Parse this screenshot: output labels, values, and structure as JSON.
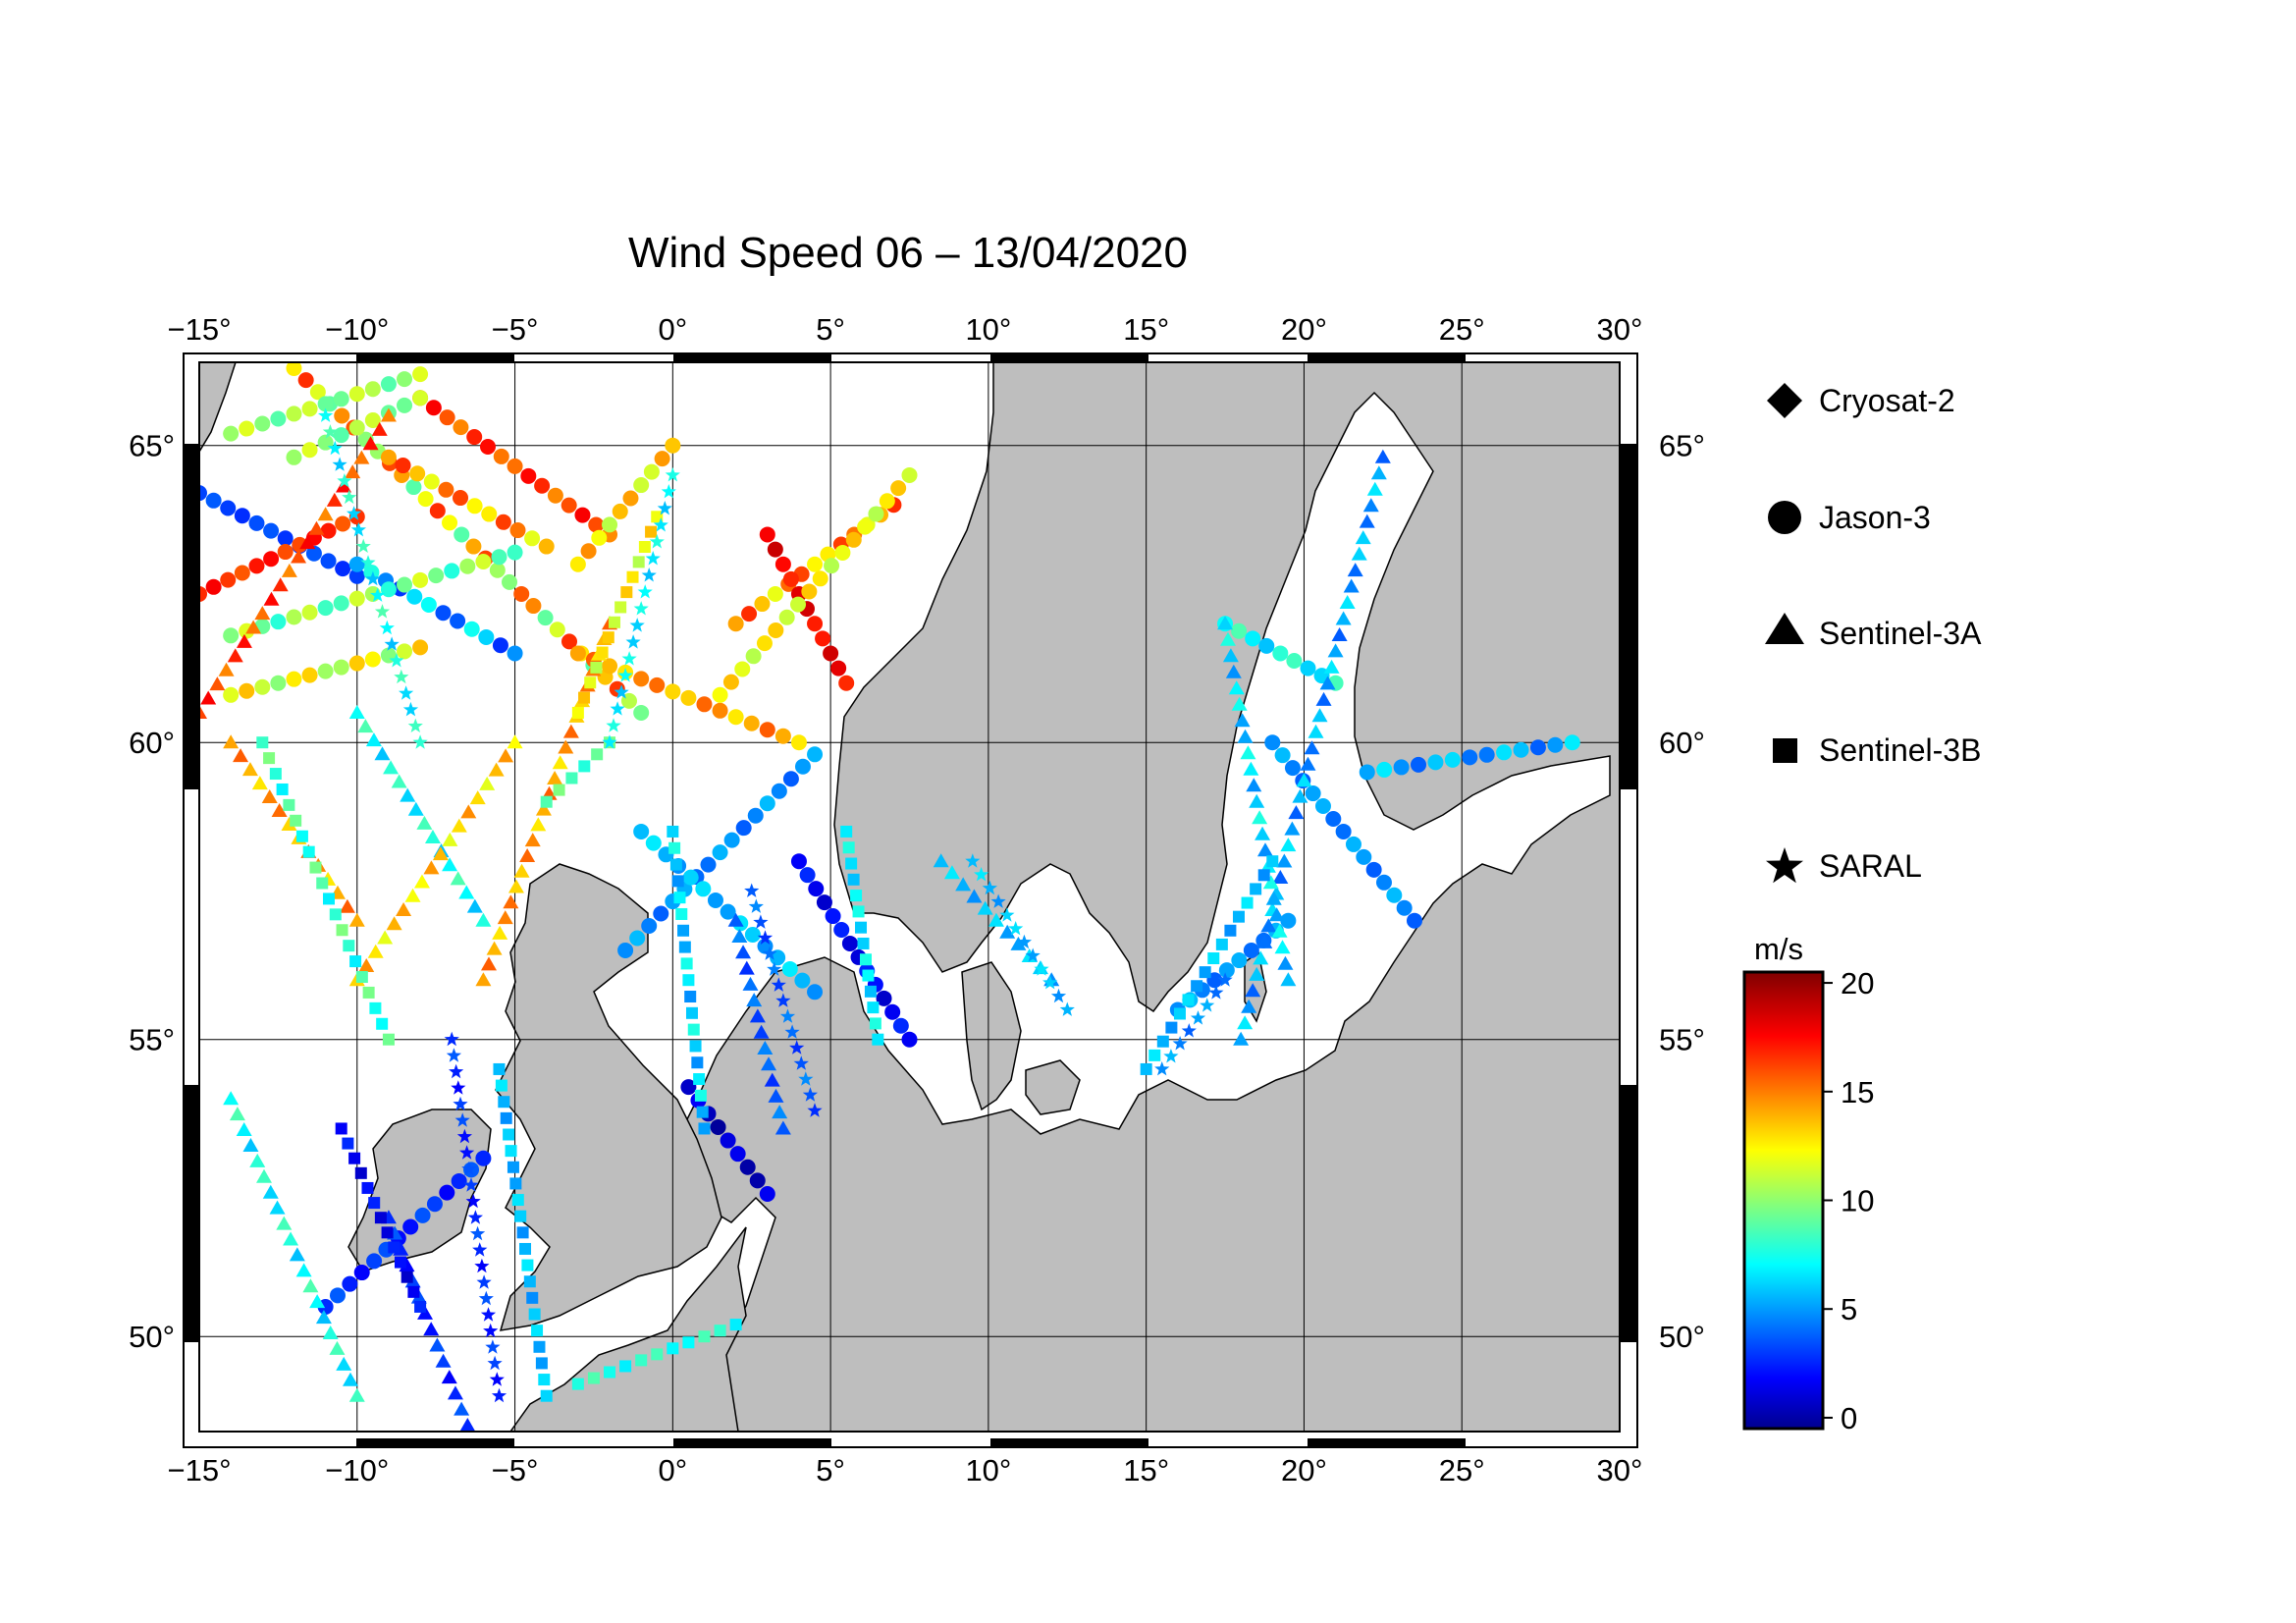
{
  "title": "Wind Speed 06 – 13/04/2020",
  "map": {
    "lon_range": [
      -15,
      30
    ],
    "lat_range": [
      48.4,
      66.4
    ],
    "lon_ticks": [
      -15,
      -10,
      -5,
      0,
      5,
      10,
      15,
      20,
      25,
      30
    ],
    "lon_tick_labels": [
      "−15°",
      "−10°",
      "−5°",
      "0°",
      "5°",
      "10°",
      "15°",
      "20°",
      "25°",
      "30°"
    ],
    "lat_ticks": [
      50,
      55,
      60,
      65
    ],
    "lat_tick_labels": [
      "50°",
      "55°",
      "60°",
      "65°"
    ],
    "land_color": "#bebebe",
    "sea_color": "#ffffff",
    "grid": true
  },
  "legend": {
    "items": [
      {
        "label": "Cryosat-2",
        "marker": "diamond"
      },
      {
        "label": "Jason-3",
        "marker": "circle"
      },
      {
        "label": "Sentinel-3A",
        "marker": "triangle"
      },
      {
        "label": "Sentinel-3B",
        "marker": "square"
      },
      {
        "label": "SARAL",
        "marker": "star"
      }
    ]
  },
  "colorbar": {
    "unit": "m/s",
    "min": -0.5,
    "max": 20.5,
    "ticks": [
      0,
      5,
      10,
      15,
      20
    ],
    "tick_labels": [
      "0",
      "5",
      "10",
      "15",
      "20"
    ],
    "colormap": "jet"
  },
  "chart_data": {
    "type": "scatter",
    "title": "Wind Speed 06 – 13/04/2020",
    "x_label": "",
    "y_label": "",
    "x_range": [
      -15,
      30
    ],
    "y_range": [
      48.4,
      66.4
    ],
    "color_scale": {
      "unit": "m/s",
      "range": [
        0,
        20
      ]
    },
    "tracks": [
      {
        "satellite": "Jason-3",
        "marker": "circle",
        "from": [
          -12.0,
          66.3
        ],
        "to": [
          -1.0,
          60.5
        ],
        "speed": [
          9,
          17
        ]
      },
      {
        "satellite": "Jason-3",
        "marker": "circle",
        "from": [
          -15.0,
          64.2
        ],
        "to": [
          -10.0,
          62.8
        ],
        "speed": [
          3,
          4
        ]
      },
      {
        "satellite": "Jason-3",
        "marker": "circle",
        "from": [
          -15.0,
          62.5
        ],
        "to": [
          -10.0,
          63.8
        ],
        "speed": [
          16,
          18
        ]
      },
      {
        "satellite": "Jason-3",
        "marker": "circle",
        "from": [
          -10.0,
          63.0
        ],
        "to": [
          -5.0,
          61.5
        ],
        "speed": [
          3,
          8
        ]
      },
      {
        "satellite": "Jason-3",
        "marker": "circle",
        "from": [
          2.0,
          62.0
        ],
        "to": [
          7.0,
          64.0
        ],
        "speed": [
          12,
          17
        ]
      },
      {
        "satellite": "Jason-3",
        "marker": "circle",
        "from": [
          3.0,
          63.5
        ],
        "to": [
          5.5,
          61.0
        ],
        "speed": [
          17,
          19
        ]
      },
      {
        "satellite": "Jason-3",
        "marker": "circle",
        "from": [
          -9.0,
          64.8
        ],
        "to": [
          -4.0,
          63.3
        ],
        "speed": [
          12,
          17
        ]
      },
      {
        "satellite": "Jason-3",
        "marker": "circle",
        "from": [
          -8.0,
          65.8
        ],
        "to": [
          -2.0,
          63.5
        ],
        "speed": [
          15,
          18
        ]
      },
      {
        "satellite": "Jason-3",
        "marker": "circle",
        "from": [
          -12.0,
          64.8
        ],
        "to": [
          -8.0,
          65.8
        ],
        "speed": [
          9,
          12
        ]
      },
      {
        "satellite": "Jason-3",
        "marker": "circle",
        "from": [
          -3.0,
          63.0
        ],
        "to": [
          0.0,
          65.0
        ],
        "speed": [
          11,
          15
        ]
      },
      {
        "satellite": "Jason-3",
        "marker": "circle",
        "from": [
          -14.0,
          61.8
        ],
        "to": [
          -5.0,
          63.2
        ],
        "speed": [
          8,
          12
        ]
      },
      {
        "satellite": "Jason-3",
        "marker": "circle",
        "from": [
          -14.0,
          60.8
        ],
        "to": [
          -8.0,
          61.6
        ],
        "speed": [
          10,
          14
        ]
      },
      {
        "satellite": "Jason-3",
        "marker": "circle",
        "from": [
          -3.0,
          61.5
        ],
        "to": [
          4.0,
          60.0
        ],
        "speed": [
          13,
          16
        ]
      },
      {
        "satellite": "Jason-3",
        "marker": "circle",
        "from": [
          1.5,
          60.8
        ],
        "to": [
          7.5,
          64.5
        ],
        "speed": [
          11,
          14
        ]
      },
      {
        "satellite": "Jason-3",
        "marker": "circle",
        "from": [
          -14.0,
          65.2
        ],
        "to": [
          -8.0,
          66.2
        ],
        "speed": [
          9,
          12
        ]
      },
      {
        "satellite": "Jason-3",
        "marker": "circle",
        "from": [
          -1.5,
          56.5
        ],
        "to": [
          4.5,
          59.8
        ],
        "speed": [
          4,
          6
        ]
      },
      {
        "satellite": "Jason-3",
        "marker": "circle",
        "from": [
          -1.0,
          58.5
        ],
        "to": [
          4.5,
          55.8
        ],
        "speed": [
          5,
          7
        ]
      },
      {
        "satellite": "Jason-3",
        "marker": "circle",
        "from": [
          4.0,
          58.0
        ],
        "to": [
          7.5,
          55.0
        ],
        "speed": [
          1,
          3
        ]
      },
      {
        "satellite": "Jason-3",
        "marker": "circle",
        "from": [
          0.5,
          54.2
        ],
        "to": [
          3.0,
          52.4
        ],
        "speed": [
          0,
          2
        ]
      },
      {
        "satellite": "Jason-3",
        "marker": "circle",
        "from": [
          -11.0,
          50.5
        ],
        "to": [
          -6.0,
          53.0
        ],
        "speed": [
          2,
          4
        ]
      },
      {
        "satellite": "Jason-3",
        "marker": "circle",
        "from": [
          16.0,
          55.5
        ],
        "to": [
          19.5,
          57.0
        ],
        "speed": [
          4,
          6
        ]
      },
      {
        "satellite": "Jason-3",
        "marker": "circle",
        "from": [
          17.5,
          62.0
        ],
        "to": [
          21.0,
          61.0
        ],
        "speed": [
          6,
          9
        ]
      },
      {
        "satellite": "Jason-3",
        "marker": "circle",
        "from": [
          19.0,
          60.0
        ],
        "to": [
          23.5,
          57.0
        ],
        "speed": [
          4,
          6
        ]
      },
      {
        "satellite": "Jason-3",
        "marker": "circle",
        "from": [
          22.0,
          59.5
        ],
        "to": [
          28.5,
          60.0
        ],
        "speed": [
          4,
          7
        ]
      },
      {
        "satellite": "Sentinel-3A",
        "marker": "triangle",
        "from": [
          -15.0,
          60.5
        ],
        "to": [
          -9.0,
          65.5
        ],
        "speed": [
          15,
          18
        ]
      },
      {
        "satellite": "Sentinel-3A",
        "marker": "triangle",
        "from": [
          -14.0,
          60.0
        ],
        "to": [
          -10.0,
          57.0
        ],
        "speed": [
          13,
          16
        ]
      },
      {
        "satellite": "Sentinel-3A",
        "marker": "triangle",
        "from": [
          -10.0,
          60.5
        ],
        "to": [
          -6.0,
          57.0
        ],
        "speed": [
          6,
          9
        ]
      },
      {
        "satellite": "Sentinel-3A",
        "marker": "triangle",
        "from": [
          -10.0,
          56.0
        ],
        "to": [
          -5.0,
          60.0
        ],
        "speed": [
          12,
          15
        ]
      },
      {
        "satellite": "Sentinel-3A",
        "marker": "triangle",
        "from": [
          -6.0,
          56.0
        ],
        "to": [
          -2.0,
          62.0
        ],
        "speed": [
          13,
          16
        ]
      },
      {
        "satellite": "Sentinel-3A",
        "marker": "triangle",
        "from": [
          -14.0,
          54.0
        ],
        "to": [
          -10.0,
          49.0
        ],
        "speed": [
          6,
          9
        ]
      },
      {
        "satellite": "Sentinel-3A",
        "marker": "triangle",
        "from": [
          -9.0,
          52.0
        ],
        "to": [
          -6.5,
          48.5
        ],
        "speed": [
          2,
          4
        ]
      },
      {
        "satellite": "Sentinel-3A",
        "marker": "triangle",
        "from": [
          2.0,
          57.0
        ],
        "to": [
          3.5,
          53.5
        ],
        "speed": [
          3,
          5
        ]
      },
      {
        "satellite": "Sentinel-3A",
        "marker": "triangle",
        "from": [
          8.5,
          58.0
        ],
        "to": [
          12.0,
          56.0
        ],
        "speed": [
          5,
          7
        ]
      },
      {
        "satellite": "Sentinel-3A",
        "marker": "triangle",
        "from": [
          18.0,
          55.0
        ],
        "to": [
          22.5,
          64.8
        ],
        "speed": [
          4,
          7
        ]
      },
      {
        "satellite": "Sentinel-3A",
        "marker": "triangle",
        "from": [
          17.5,
          62.0
        ],
        "to": [
          19.5,
          56.0
        ],
        "speed": [
          5,
          8
        ]
      },
      {
        "satellite": "Sentinel-3B",
        "marker": "square",
        "from": [
          -13.0,
          60.0
        ],
        "to": [
          -9.0,
          55.0
        ],
        "speed": [
          7,
          10
        ]
      },
      {
        "satellite": "Sentinel-3B",
        "marker": "square",
        "from": [
          -10.5,
          53.5
        ],
        "to": [
          -8.0,
          50.5
        ],
        "speed": [
          1,
          3
        ]
      },
      {
        "satellite": "Sentinel-3B",
        "marker": "square",
        "from": [
          -3.0,
          60.5
        ],
        "to": [
          -0.5,
          63.8
        ],
        "speed": [
          11,
          14
        ]
      },
      {
        "satellite": "Sentinel-3B",
        "marker": "square",
        "from": [
          -4.0,
          59.0
        ],
        "to": [
          -2.0,
          60.0
        ],
        "speed": [
          8,
          10
        ]
      },
      {
        "satellite": "Sentinel-3B",
        "marker": "square",
        "from": [
          0.0,
          58.5
        ],
        "to": [
          1.0,
          53.5
        ],
        "speed": [
          5,
          8
        ]
      },
      {
        "satellite": "Sentinel-3B",
        "marker": "square",
        "from": [
          5.5,
          58.5
        ],
        "to": [
          6.5,
          55.0
        ],
        "speed": [
          6,
          8
        ]
      },
      {
        "satellite": "Sentinel-3B",
        "marker": "square",
        "from": [
          -5.5,
          54.5
        ],
        "to": [
          -4.0,
          49.0
        ],
        "speed": [
          5,
          7
        ]
      },
      {
        "satellite": "Sentinel-3B",
        "marker": "square",
        "from": [
          15.0,
          54.5
        ],
        "to": [
          19.0,
          58.0
        ],
        "speed": [
          5,
          7
        ]
      },
      {
        "satellite": "Sentinel-3B",
        "marker": "square",
        "from": [
          -3.0,
          49.2
        ],
        "to": [
          2.0,
          50.2
        ],
        "speed": [
          7,
          9
        ]
      },
      {
        "satellite": "SARAL",
        "marker": "star",
        "from": [
          -11.0,
          65.5
        ],
        "to": [
          -8.0,
          60.0
        ],
        "speed": [
          6,
          9
        ]
      },
      {
        "satellite": "SARAL",
        "marker": "star",
        "from": [
          -2.0,
          60.0
        ],
        "to": [
          0.0,
          64.5
        ],
        "speed": [
          6,
          8
        ]
      },
      {
        "satellite": "SARAL",
        "marker": "star",
        "from": [
          2.5,
          57.5
        ],
        "to": [
          4.5,
          53.8
        ],
        "speed": [
          3,
          5
        ]
      },
      {
        "satellite": "SARAL",
        "marker": "star",
        "from": [
          -7.0,
          55.0
        ],
        "to": [
          -5.5,
          49.0
        ],
        "speed": [
          2,
          4
        ]
      },
      {
        "satellite": "SARAL",
        "marker": "star",
        "from": [
          9.5,
          58.0
        ],
        "to": [
          12.5,
          55.5
        ],
        "speed": [
          5,
          7
        ]
      },
      {
        "satellite": "SARAL",
        "marker": "star",
        "from": [
          15.5,
          54.5
        ],
        "to": [
          17.5,
          56.0
        ],
        "speed": [
          4,
          6
        ]
      }
    ]
  }
}
